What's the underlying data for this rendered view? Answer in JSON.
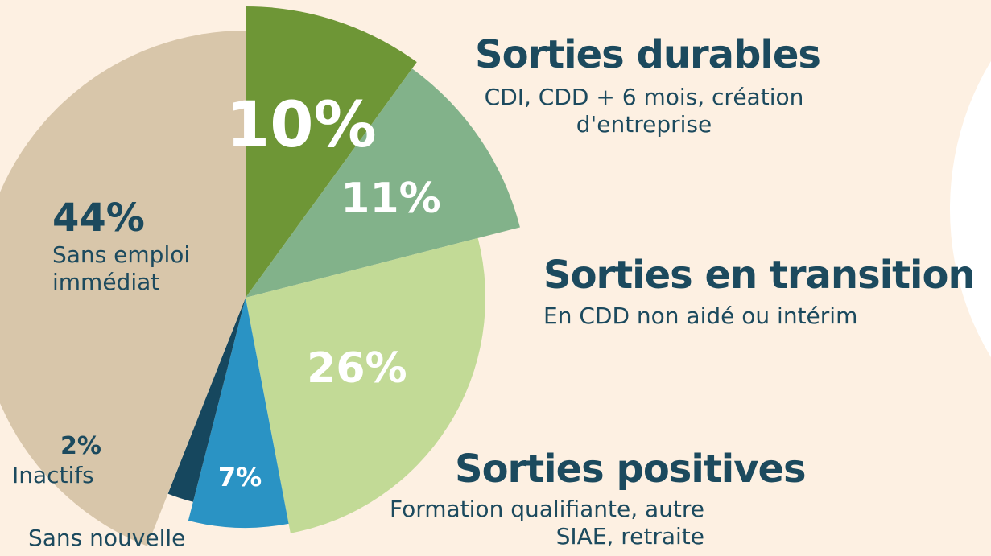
{
  "chart_data": {
    "type": "pie",
    "categories": [
      "Sorties durables",
      "Sorties en transition",
      "Sorties positives",
      "Sans nouvelle",
      "Inactifs",
      "Sans emploi immédiat"
    ],
    "descriptions": [
      "CDI, CDD + 6 mois, création d'entreprise",
      "En CDD non aidé ou intérim",
      "Formation qualifiante, autre SIAE, retraite",
      null,
      null,
      null
    ],
    "values": [
      10,
      11,
      26,
      7,
      2,
      44
    ],
    "value_labels": [
      "10%",
      "11%",
      "26%",
      "7%",
      "2%",
      "44%"
    ],
    "colors": [
      "#6e9636",
      "#82b28a",
      "#c2da96",
      "#2a93c4",
      "#16475e",
      "#d8c6aa"
    ]
  }
}
